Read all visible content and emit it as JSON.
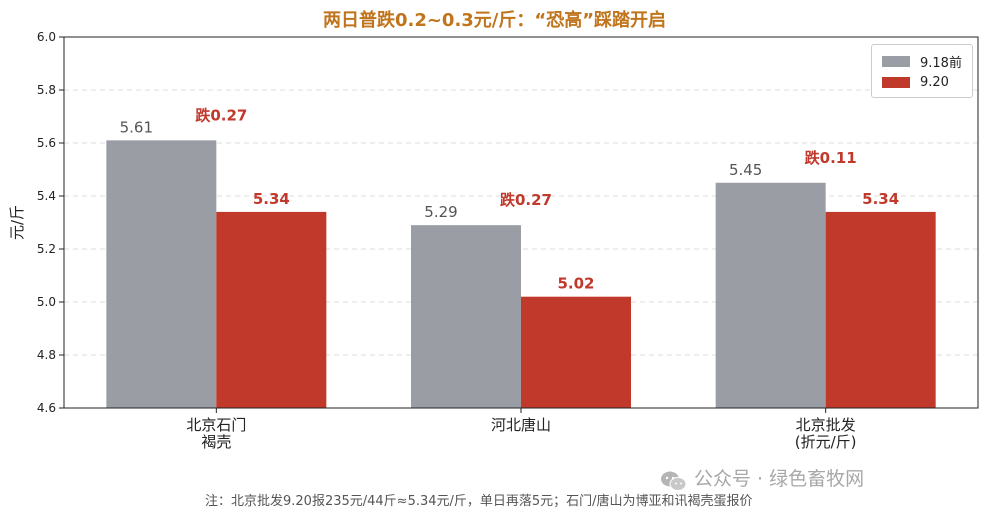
{
  "chart_data": {
    "type": "bar",
    "title": "两日普跌0.2~0.3元/斤：“恐高”踩踏开启",
    "ylabel": "元/斤",
    "ylim": [
      4.6,
      6.0
    ],
    "yticks": [
      "4.6",
      "4.8",
      "5.0",
      "5.2",
      "5.4",
      "5.6",
      "5.8",
      "6.0"
    ],
    "grid": true,
    "legend_position": "top-right",
    "categories": [
      [
        "北京石门",
        "褐壳"
      ],
      [
        "河北唐山"
      ],
      [
        "北京批发",
        "(折元/斤)"
      ]
    ],
    "series": [
      {
        "name": "9.18前",
        "color": "#9a9ea4",
        "values": [
          5.61,
          5.29,
          5.45
        ],
        "labels": [
          "5.61",
          "5.29",
          "5.45"
        ]
      },
      {
        "name": "9.20",
        "color": "#c0392b",
        "values": [
          5.34,
          5.02,
          5.34
        ],
        "labels": [
          "5.34",
          "5.02",
          "5.34"
        ]
      }
    ],
    "annotations": [
      "跌0.27",
      "跌0.27",
      "跌0.11"
    ],
    "annotation_color": "#c0392b"
  },
  "footnote": "注：北京批发9.20报235元/44斤≈5.34元/斤，单日再落5元；石门/唐山为博亚和讯褐壳蛋报价",
  "watermark": "公众号 · 绿色畜牧网"
}
